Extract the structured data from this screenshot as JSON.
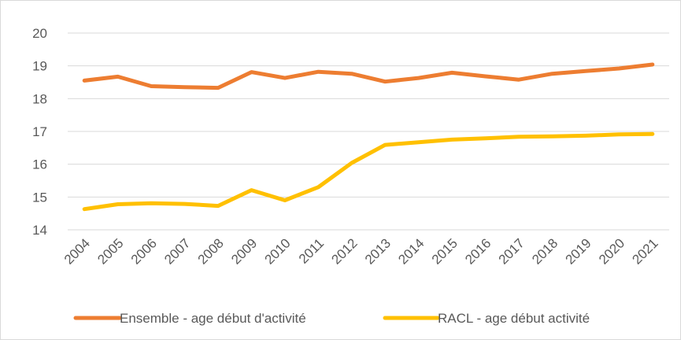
{
  "chart_data": {
    "type": "line",
    "x": [
      "2004",
      "2005",
      "2006",
      "2007",
      "2008",
      "2009",
      "2010",
      "2011",
      "2012",
      "2013",
      "2014",
      "2015",
      "2016",
      "2017",
      "2018",
      "2019",
      "2020",
      "2021"
    ],
    "series": [
      {
        "name": "Ensemble - age début d'activité",
        "color": "#ED7D31",
        "values": [
          18.55,
          18.67,
          18.38,
          18.35,
          18.33,
          18.81,
          18.63,
          18.82,
          18.76,
          18.52,
          18.63,
          18.79,
          18.68,
          18.58,
          18.76,
          18.84,
          18.92,
          19.04
        ]
      },
      {
        "name": "RACL - age début activité",
        "color": "#FFC000",
        "values": [
          14.63,
          14.78,
          14.81,
          14.79,
          14.73,
          15.21,
          14.9,
          15.3,
          16.04,
          16.59,
          16.67,
          16.75,
          16.79,
          16.84,
          16.85,
          16.87,
          16.91,
          16.92
        ]
      }
    ],
    "ylim": [
      14,
      20
    ],
    "yticks": [
      "14",
      "15",
      "16",
      "17",
      "18",
      "19",
      "20"
    ],
    "grid": true,
    "legend": "bottom"
  }
}
